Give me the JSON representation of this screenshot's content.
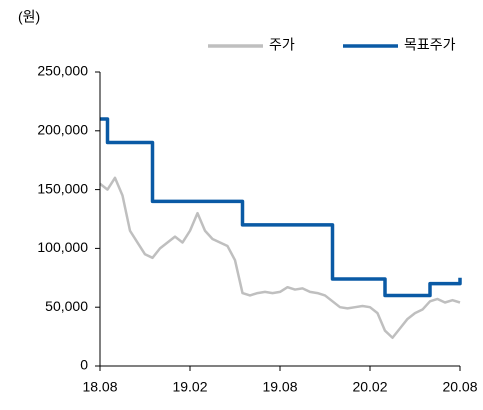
{
  "chart_data": {
    "type": "line",
    "unit_label": "(원)",
    "categories": [
      "18.08",
      null,
      null,
      null,
      null,
      null,
      null,
      null,
      null,
      null,
      null,
      null,
      "19.02",
      null,
      null,
      null,
      null,
      null,
      null,
      null,
      null,
      null,
      null,
      null,
      "19.08",
      null,
      null,
      null,
      null,
      null,
      null,
      null,
      null,
      null,
      null,
      null,
      "20.02",
      null,
      null,
      null,
      null,
      null,
      null,
      null,
      null,
      null,
      null,
      null,
      "20.08"
    ],
    "series": [
      {
        "name": "주가",
        "color": "#bfbfbf",
        "step": false,
        "values": [
          155000,
          150000,
          160000,
          145000,
          115000,
          105000,
          95000,
          92000,
          100000,
          105000,
          110000,
          105000,
          115000,
          130000,
          115000,
          108000,
          105000,
          102000,
          90000,
          62000,
          60000,
          62000,
          63000,
          62000,
          63000,
          67000,
          65000,
          66000,
          63000,
          62000,
          60000,
          55000,
          50000,
          49000,
          50000,
          51000,
          50000,
          45000,
          30000,
          24000,
          32000,
          40000,
          45000,
          48000,
          55000,
          57000,
          54000,
          56000,
          54000
        ]
      },
      {
        "name": "목표주가",
        "color": "#0a5aa5",
        "step": true,
        "values": [
          210000,
          190000,
          190000,
          190000,
          190000,
          190000,
          190000,
          140000,
          140000,
          140000,
          140000,
          140000,
          140000,
          140000,
          140000,
          140000,
          140000,
          140000,
          140000,
          120000,
          120000,
          120000,
          120000,
          120000,
          120000,
          120000,
          120000,
          120000,
          120000,
          120000,
          120000,
          74000,
          74000,
          74000,
          74000,
          74000,
          74000,
          74000,
          60000,
          60000,
          60000,
          60000,
          60000,
          60000,
          70000,
          70000,
          70000,
          70000,
          75000
        ]
      }
    ],
    "ylim": [
      0,
      250000
    ],
    "yticks": [
      0,
      {
        "value": 50000,
        "label": "50,000"
      },
      {
        "value": 100000,
        "label": "100,000"
      },
      {
        "value": 150000,
        "label": "150,000"
      },
      {
        "value": 200000,
        "label": "200,000"
      },
      {
        "value": 250000,
        "label": "250,000"
      }
    ],
    "grid": false,
    "legend": "top-right"
  }
}
